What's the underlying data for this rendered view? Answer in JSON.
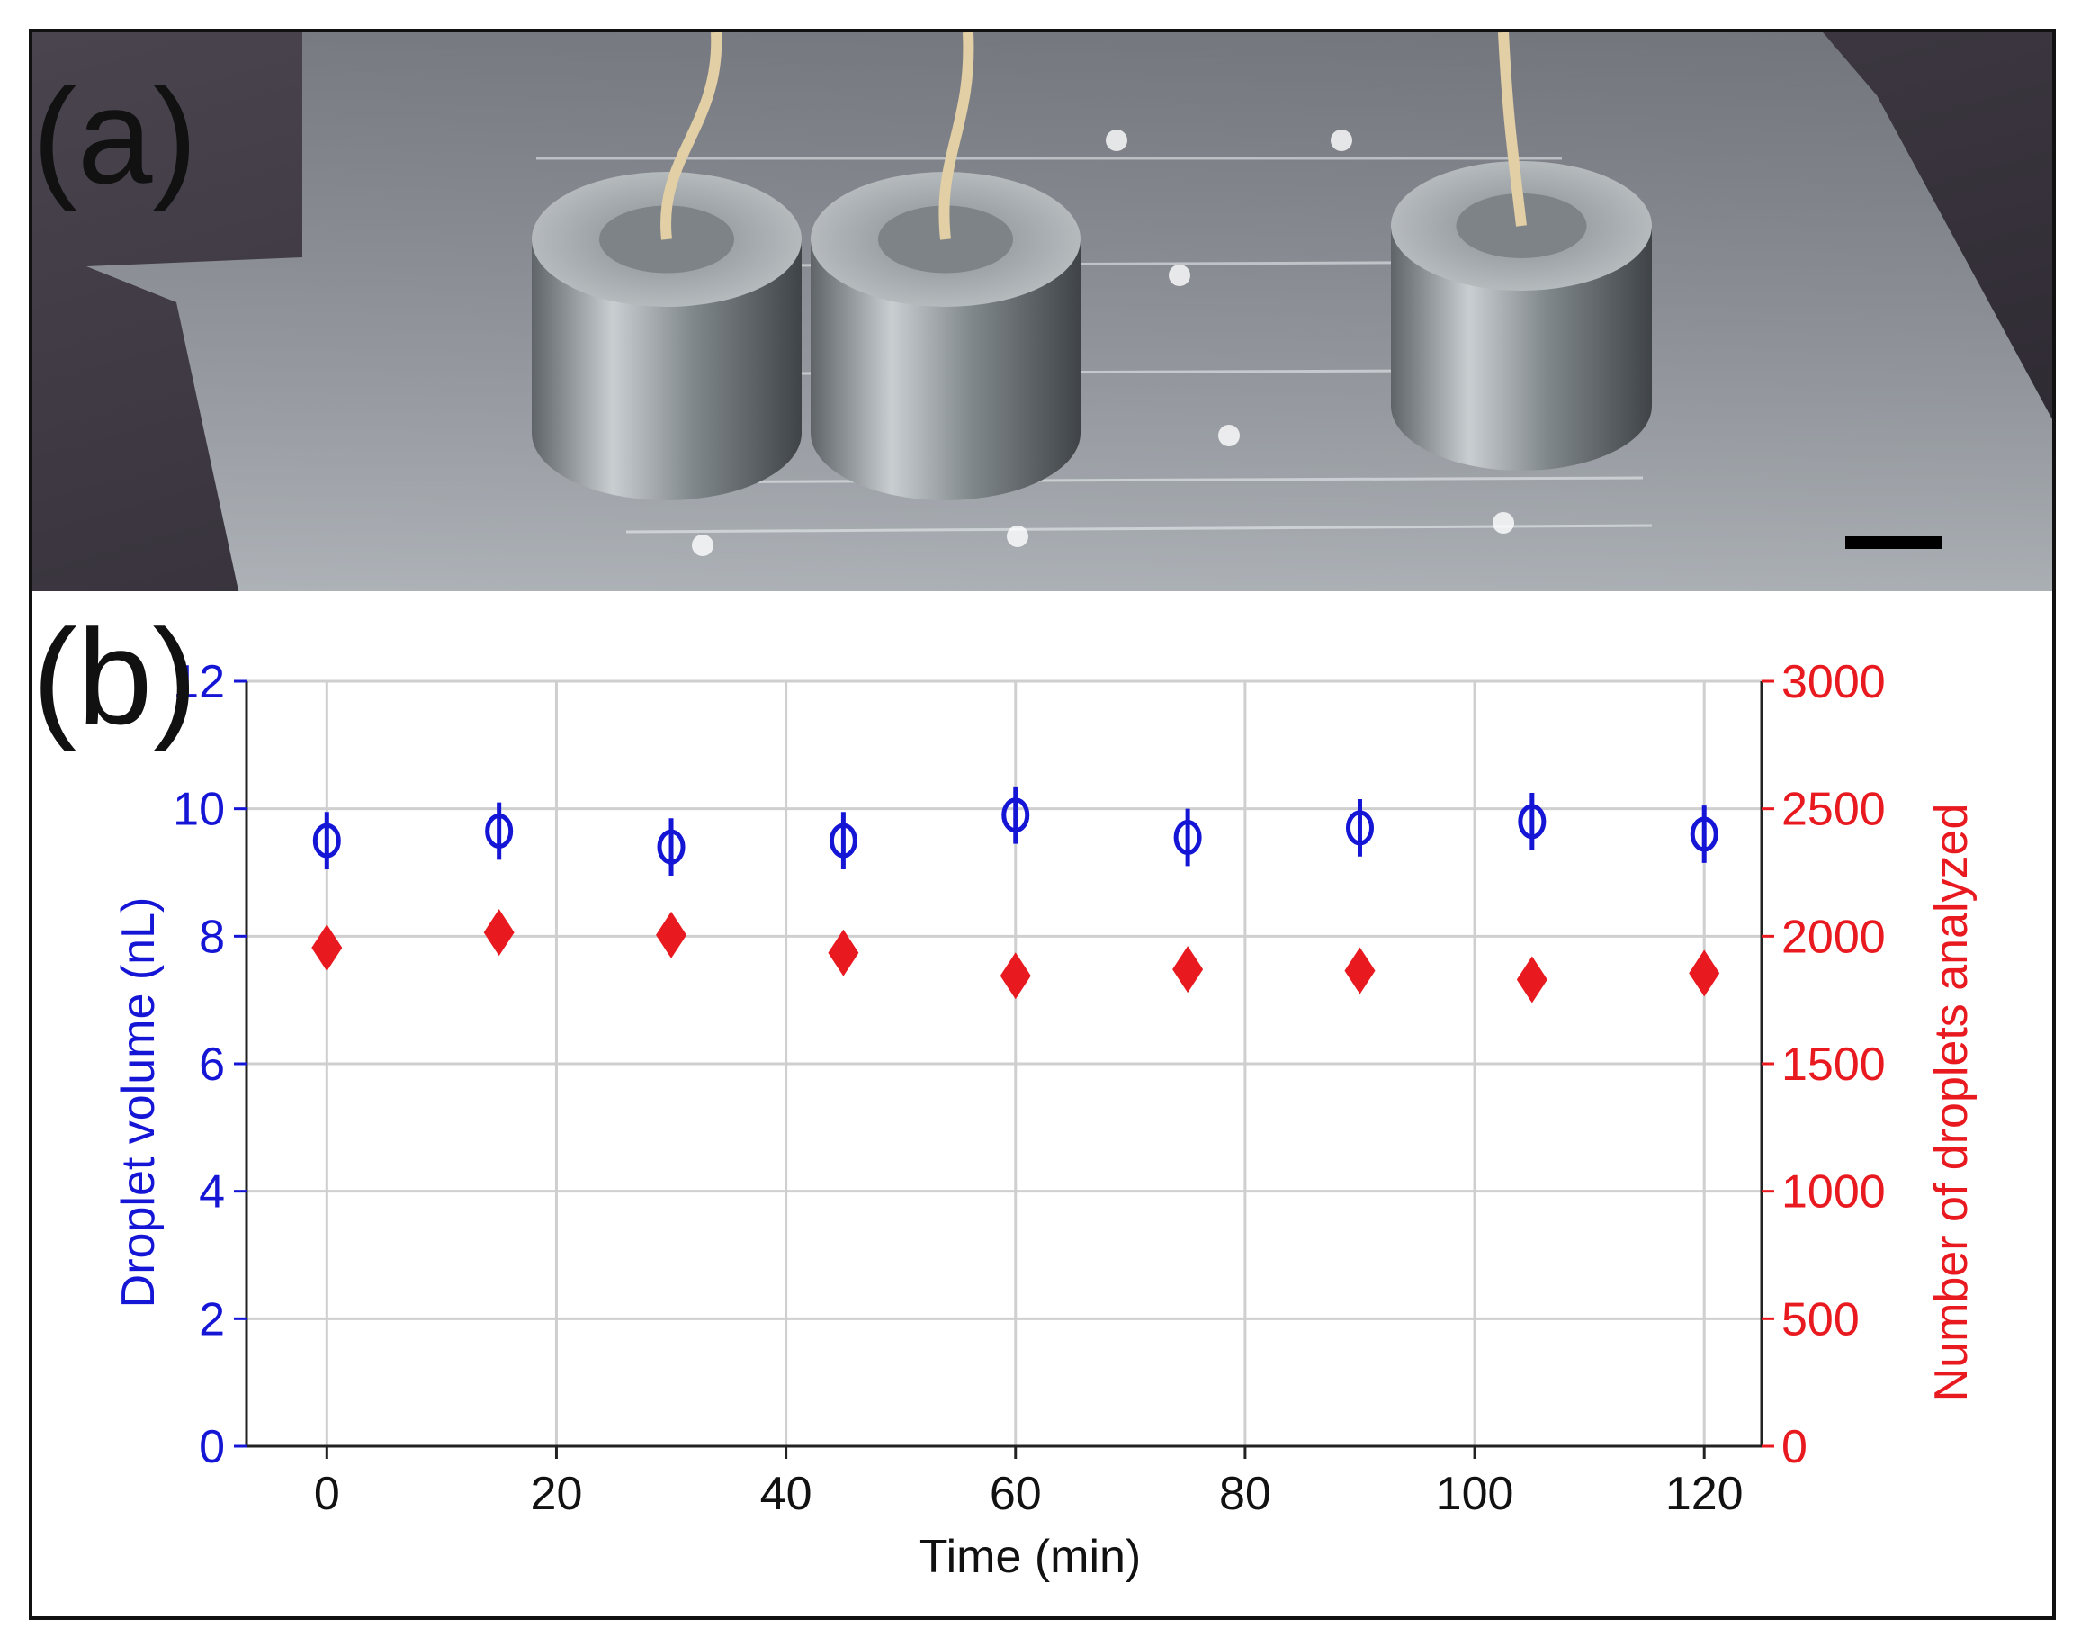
{
  "figure": {
    "panel_a_label": "(a)",
    "panel_b_label": "(b)"
  },
  "photo": {
    "background_color": "#3b3540",
    "film_color": "#b9c3c8",
    "magnet_color": "#8e9498",
    "tubing_color": "#e2cfa5",
    "scale_bar_color": "#000000",
    "magnet_count": 3
  },
  "chart_data": {
    "type": "scatter",
    "xlabel": "Time (min)",
    "ylabel_left": "Droplet volume (nL)",
    "ylabel_right": "Number of droplets analyzed",
    "xlim": [
      -7,
      125
    ],
    "ylim_left": [
      0,
      12
    ],
    "ylim_right": [
      0,
      3000
    ],
    "x_ticks": [
      0,
      20,
      40,
      60,
      80,
      100,
      120
    ],
    "y_ticks_left": [
      0,
      2,
      4,
      6,
      8,
      10,
      12
    ],
    "y_ticks_right": [
      0,
      500,
      1000,
      1500,
      2000,
      2500,
      3000
    ],
    "grid": true,
    "left_axis_color": "#1515d6",
    "right_axis_color": "#e8191f",
    "series": [
      {
        "axis": "left",
        "marker": "open-circle-with-error-bar",
        "color": "#1515d6",
        "x": [
          0,
          15,
          30,
          45,
          60,
          75,
          90,
          105,
          120
        ],
        "values": [
          9.5,
          9.65,
          9.4,
          9.5,
          9.9,
          9.55,
          9.7,
          9.8,
          9.6
        ],
        "error": [
          0.45,
          0.45,
          0.45,
          0.45,
          0.45,
          0.45,
          0.45,
          0.45,
          0.45
        ]
      },
      {
        "axis": "right",
        "marker": "filled-diamond",
        "color": "#e8191f",
        "x": [
          0,
          15,
          30,
          45,
          60,
          75,
          90,
          105,
          120
        ],
        "values": [
          1955,
          2015,
          2005,
          1935,
          1845,
          1870,
          1865,
          1830,
          1855
        ]
      }
    ]
  }
}
